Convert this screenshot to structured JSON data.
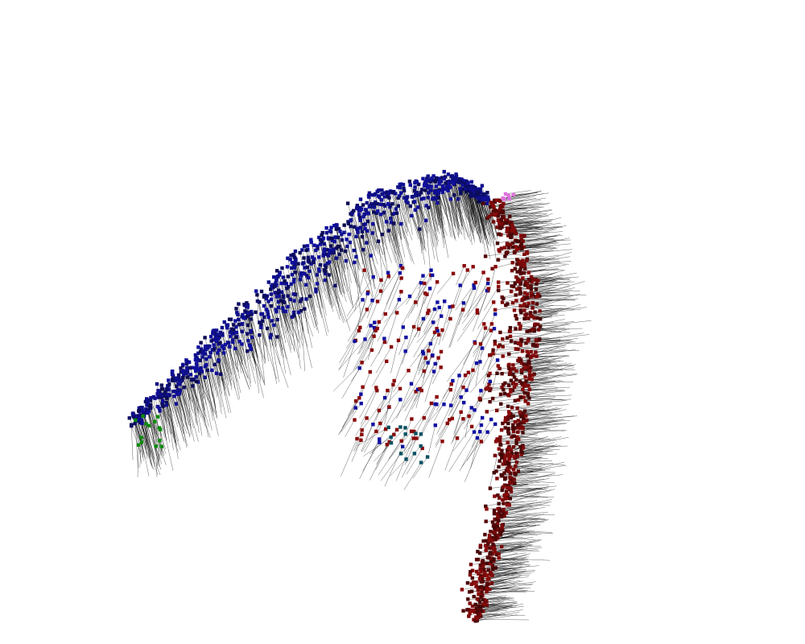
{
  "visualization": {
    "kind": "point-cloud with direction vectors",
    "background": "#ffffff",
    "glyph_stroke": "#000000",
    "clusters": [
      {
        "name": "blue-cluster",
        "color": "#1010a0",
        "dark_color": "#0a0a40"
      },
      {
        "name": "red-cluster",
        "color": "#8a0a0a",
        "dark_color": "#3a0505"
      },
      {
        "name": "green-cluster",
        "color": "#0a8a0a"
      },
      {
        "name": "teal-cluster",
        "color": "#0a5060"
      },
      {
        "name": "pink-cluster",
        "color": "#e070e0"
      }
    ]
  }
}
